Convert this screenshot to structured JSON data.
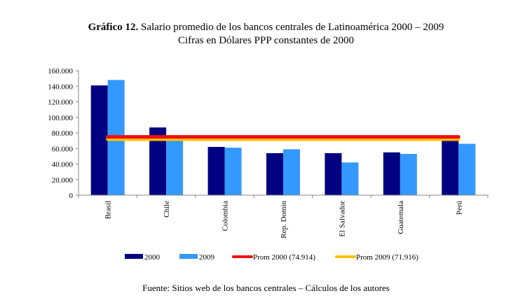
{
  "chart_data": {
    "type": "bar",
    "title_bold": "Gráfico 12.",
    "title": "Salario promedio de los bancos centrales de Latinoamérica 2000 – 2009",
    "subtitle": "Cifras en Dólares PPP constantes de 2000",
    "categories": [
      "Brasil",
      "Chile",
      "Colombia",
      "Rep. Domin",
      "El Salvador",
      "Guatemala",
      "Perú"
    ],
    "series": [
      {
        "name": "2000",
        "color": "#000080",
        "values": [
          141000,
          87000,
          62000,
          54000,
          54000,
          55000,
          72000
        ]
      },
      {
        "name": "2009",
        "color": "#3399ff",
        "values": [
          148000,
          71000,
          61000,
          59000,
          42000,
          53000,
          66000
        ]
      }
    ],
    "lines": [
      {
        "name": "Prom 2000 (74.914)",
        "value": 74914,
        "color": "#ee1111"
      },
      {
        "name": "Prom 2009 (71.916)",
        "value": 71916,
        "color": "#ffc000"
      }
    ],
    "yticks": [
      "0",
      "20.000",
      "40.000",
      "60.000",
      "80.000",
      "100.000",
      "120.000",
      "140.000",
      "160.000"
    ],
    "ylim": [
      0,
      160000
    ],
    "legend": "bottom",
    "source": "Fuente: Sitios web de los bancos centrales – Cálculos de los autores"
  }
}
